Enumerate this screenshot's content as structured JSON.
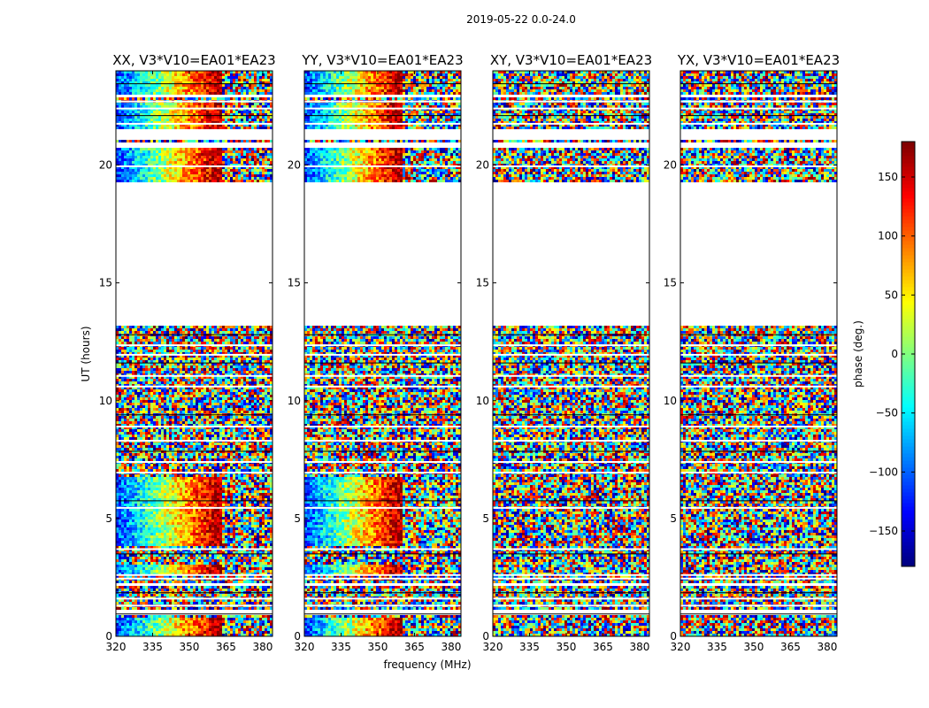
{
  "chart_data": {
    "type": "heatmap",
    "suptitle": "2019-05-22 0.0-24.0",
    "xlabel": "frequency (MHz)",
    "ylabel": "UT (hours)",
    "xlim": [
      320,
      384
    ],
    "ylim": [
      0,
      24
    ],
    "xticks": [
      320,
      335,
      350,
      365,
      380
    ],
    "yticks": [
      0,
      5,
      10,
      15,
      20
    ],
    "panels": [
      {
        "title": "XX, V3*V10=EA01*EA23",
        "pol": "XX",
        "coherent": true,
        "gradient_end_mhz": 363
      },
      {
        "title": "YY, V3*V10=EA01*EA23",
        "pol": "YY",
        "coherent": true,
        "gradient_end_mhz": 360
      },
      {
        "title": "XY, V3*V10=EA01*EA23",
        "pol": "XY",
        "coherent": false,
        "gradient_end_mhz": null
      },
      {
        "title": "YX, V3*V10=EA01*EA23",
        "pol": "YX",
        "coherent": false,
        "gradient_end_mhz": null
      }
    ],
    "coherent_hours": [
      [
        0.0,
        0.8
      ],
      [
        2.6,
        3.0
      ],
      [
        3.8,
        6.8
      ],
      [
        19.3,
        20.7
      ],
      [
        21.5,
        22.6
      ],
      [
        23.0,
        24.0
      ]
    ],
    "data_hours": [
      [
        0.05,
        0.95
      ],
      [
        1.1,
        2.1
      ],
      [
        2.2,
        13.2
      ],
      [
        19.3,
        20.7
      ],
      [
        21.0,
        21.1
      ],
      [
        21.5,
        22.9
      ],
      [
        23.0,
        24.0
      ]
    ],
    "gap_hours": [
      0.95,
      1.3,
      1.6,
      1.85,
      2.45,
      2.6,
      3.5,
      3.7,
      5.45,
      5.75,
      6.95,
      7.4,
      7.85,
      8.3,
      8.9,
      9.4,
      10.6,
      11.05,
      11.6,
      11.95,
      12.35,
      12.8,
      19.95,
      21.75,
      22.1,
      22.4,
      22.7,
      23.45
    ],
    "colorbar": {
      "label": "phase (deg.)",
      "range": [
        -180,
        180
      ],
      "ticks": [
        -150,
        -100,
        -50,
        0,
        50,
        100,
        150
      ],
      "tick_labels": [
        "−150",
        "−100",
        "−50",
        "0",
        "50",
        "100",
        "150"
      ],
      "colormap": "jet"
    }
  }
}
